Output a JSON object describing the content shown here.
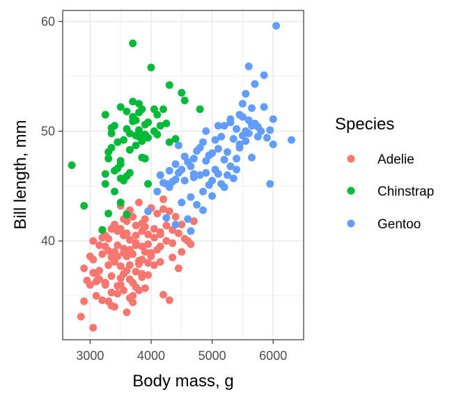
{
  "chart_data": {
    "type": "scatter",
    "xlabel": "Body mass, g",
    "ylabel": "Bill length, mm",
    "xlim": [
      2550,
      6500
    ],
    "ylim": [
      31,
      61
    ],
    "x_ticks": [
      3000,
      4000,
      5000,
      6000
    ],
    "y_ticks": [
      40,
      50,
      60
    ],
    "x_tick_labels": [
      "3000",
      "4000",
      "5000",
      "6000"
    ],
    "y_tick_labels": [
      "40",
      "50",
      "60"
    ],
    "grid": true,
    "legend": {
      "title": "Species",
      "placement": "right"
    },
    "series": [
      {
        "name": "Adelie",
        "color": "#F8766D",
        "points": [
          [
            3050,
            32.1
          ],
          [
            2850,
            33.1
          ],
          [
            2900,
            34.5
          ],
          [
            3200,
            34.6
          ],
          [
            3350,
            34.1
          ],
          [
            3400,
            34.0
          ],
          [
            4300,
            34.6
          ],
          [
            3600,
            33.5
          ],
          [
            3450,
            35.2
          ],
          [
            3100,
            35.0
          ],
          [
            3700,
            35.0
          ],
          [
            3800,
            35.5
          ],
          [
            4200,
            35.1
          ],
          [
            2950,
            36.4
          ],
          [
            3000,
            36.0
          ],
          [
            3150,
            36.5
          ],
          [
            3250,
            36.2
          ],
          [
            3350,
            36.8
          ],
          [
            3500,
            36.0
          ],
          [
            3550,
            37.0
          ],
          [
            3650,
            36.5
          ],
          [
            3750,
            37.2
          ],
          [
            3850,
            36.7
          ],
          [
            3300,
            37.8
          ],
          [
            3400,
            38.1
          ],
          [
            3500,
            37.7
          ],
          [
            3600,
            38.6
          ],
          [
            3700,
            38.8
          ],
          [
            3800,
            38.2
          ],
          [
            3900,
            39.0
          ],
          [
            4000,
            38.9
          ],
          [
            4100,
            39.2
          ],
          [
            2900,
            37.5
          ],
          [
            3050,
            38.3
          ],
          [
            3100,
            37.0
          ],
          [
            3200,
            38.8
          ],
          [
            3250,
            39.5
          ],
          [
            3300,
            40.2
          ],
          [
            3450,
            39.6
          ],
          [
            3550,
            40.5
          ],
          [
            3650,
            40.1
          ],
          [
            3750,
            39.8
          ],
          [
            3850,
            40.9
          ],
          [
            3950,
            40.6
          ],
          [
            4050,
            41.1
          ],
          [
            4150,
            40.8
          ],
          [
            4250,
            41.4
          ],
          [
            4350,
            41.0
          ],
          [
            4450,
            40.7
          ],
          [
            3200,
            41.0
          ],
          [
            3400,
            41.5
          ],
          [
            3500,
            41.1
          ],
          [
            3600,
            41.8
          ],
          [
            3700,
            42.2
          ],
          [
            3900,
            42.0
          ],
          [
            4100,
            42.5
          ],
          [
            4200,
            42.9
          ],
          [
            4300,
            42.7
          ],
          [
            4400,
            42.2
          ],
          [
            4500,
            41.5
          ],
          [
            3500,
            43.2
          ],
          [
            3600,
            42.5
          ],
          [
            3800,
            43.5
          ],
          [
            4000,
            43.0
          ],
          [
            4200,
            43.8
          ],
          [
            4700,
            41.8
          ],
          [
            4600,
            40.0
          ],
          [
            4500,
            39.0
          ],
          [
            4350,
            38.5
          ],
          [
            4250,
            40.0
          ],
          [
            4150,
            39.5
          ],
          [
            3950,
            38.0
          ],
          [
            3850,
            37.0
          ],
          [
            3750,
            35.8
          ],
          [
            3650,
            34.8
          ],
          [
            3550,
            35.5
          ],
          [
            3450,
            35.9
          ],
          [
            3350,
            35.3
          ],
          [
            3250,
            36.0
          ],
          [
            3150,
            37.3
          ],
          [
            3050,
            37.1
          ],
          [
            3350,
            38.5
          ],
          [
            3450,
            38.6
          ],
          [
            3550,
            38.9
          ],
          [
            3650,
            39.2
          ],
          [
            3750,
            39.6
          ],
          [
            3850,
            39.5
          ],
          [
            3950,
            39.7
          ],
          [
            4050,
            40.3
          ],
          [
            4150,
            40.6
          ],
          [
            3250,
            40.5
          ],
          [
            3450,
            41.1
          ],
          [
            3550,
            42.0
          ],
          [
            3650,
            42.8
          ],
          [
            3750,
            41.4
          ],
          [
            3850,
            41.6
          ],
          [
            4450,
            37.5
          ],
          [
            4050,
            37.8
          ],
          [
            3600,
            37.3
          ],
          [
            3400,
            39.0
          ],
          [
            3200,
            40.3
          ],
          [
            3000,
            38.6
          ],
          [
            3100,
            36.3
          ],
          [
            3300,
            34.5
          ],
          [
            3700,
            34.4
          ],
          [
            3900,
            35.7
          ],
          [
            3750,
            40.5
          ],
          [
            3450,
            40.9
          ],
          [
            3350,
            41.1
          ],
          [
            3550,
            39.3
          ],
          [
            3650,
            37.8
          ],
          [
            3850,
            38.3
          ],
          [
            3950,
            36.9
          ],
          [
            4150,
            38.1
          ],
          [
            4350,
            39.8
          ],
          [
            4550,
            40.2
          ],
          [
            4650,
            39.7
          ],
          [
            3900,
            41.3
          ],
          [
            3600,
            40.7
          ],
          [
            3300,
            39.1
          ],
          [
            3150,
            39.6
          ],
          [
            3050,
            40.0
          ],
          [
            3500,
            36.6
          ],
          [
            3700,
            36.2
          ],
          [
            3800,
            37.9
          ],
          [
            4000,
            38.6
          ]
        ]
      },
      {
        "name": "Chinstrap",
        "color": "#00BA38",
        "points": [
          [
            2700,
            46.9
          ],
          [
            2900,
            43.2
          ],
          [
            3200,
            41.0
          ],
          [
            3250,
            46.1
          ],
          [
            3250,
            45.2
          ],
          [
            3300,
            47.5
          ],
          [
            3300,
            48.1
          ],
          [
            3350,
            48.5
          ],
          [
            3350,
            50.3
          ],
          [
            3400,
            50.5
          ],
          [
            3400,
            46.4
          ],
          [
            3450,
            46.6
          ],
          [
            3450,
            49.0
          ],
          [
            3500,
            45.7
          ],
          [
            3500,
            47.0
          ],
          [
            3550,
            45.5
          ],
          [
            3550,
            49.2
          ],
          [
            3600,
            45.9
          ],
          [
            3600,
            50.2
          ],
          [
            3650,
            46.2
          ],
          [
            3650,
            49.8
          ],
          [
            3700,
            50.9
          ],
          [
            3700,
            51.3
          ],
          [
            3700,
            58.0
          ],
          [
            3750,
            49.6
          ],
          [
            3750,
            51.0
          ],
          [
            3800,
            49.5
          ],
          [
            3800,
            50.1
          ],
          [
            3800,
            51.7
          ],
          [
            3850,
            52.0
          ],
          [
            3850,
            47.6
          ],
          [
            3900,
            47.5
          ],
          [
            3900,
            49.7
          ],
          [
            3950,
            50.8
          ],
          [
            3950,
            45.2
          ],
          [
            4000,
            55.8
          ],
          [
            4050,
            52.0
          ],
          [
            4050,
            50.0
          ],
          [
            4100,
            51.5
          ],
          [
            4150,
            50.5
          ],
          [
            4200,
            52.0
          ],
          [
            4150,
            46.0
          ],
          [
            4300,
            54.2
          ],
          [
            4300,
            49.0
          ],
          [
            4400,
            49.3
          ],
          [
            4500,
            53.5
          ],
          [
            4550,
            52.8
          ],
          [
            4800,
            52.0
          ],
          [
            3250,
            51.5
          ],
          [
            3350,
            49.8
          ],
          [
            3500,
            52.2
          ],
          [
            3600,
            51.8
          ],
          [
            3700,
            52.7
          ],
          [
            3800,
            52.5
          ],
          [
            3300,
            42.5
          ],
          [
            3500,
            43.5
          ],
          [
            3600,
            42.4
          ],
          [
            3400,
            44.5
          ],
          [
            3500,
            47.3
          ],
          [
            3650,
            48.3
          ],
          [
            3750,
            48.7
          ],
          [
            3850,
            49.1
          ],
          [
            3900,
            50.6
          ],
          [
            3950,
            49.4
          ],
          [
            4100,
            49.7
          ],
          [
            4250,
            50.7
          ]
        ]
      },
      {
        "name": "Gentoo",
        "color": "#619CFF",
        "points": [
          [
            3950,
            42.7
          ],
          [
            4100,
            44.5
          ],
          [
            4150,
            46.0
          ],
          [
            4200,
            45.3
          ],
          [
            4250,
            45.2
          ],
          [
            4300,
            44.9
          ],
          [
            4300,
            46.4
          ],
          [
            4350,
            45.4
          ],
          [
            4400,
            45.6
          ],
          [
            4400,
            47.0
          ],
          [
            4450,
            46.2
          ],
          [
            4450,
            48.7
          ],
          [
            4500,
            46.5
          ],
          [
            4550,
            45.5
          ],
          [
            4600,
            47.2
          ],
          [
            4650,
            44.0
          ],
          [
            4650,
            46.8
          ],
          [
            4700,
            47.5
          ],
          [
            4700,
            45.8
          ],
          [
            4750,
            48.2
          ],
          [
            4800,
            46.0
          ],
          [
            4800,
            48.5
          ],
          [
            4850,
            44.5
          ],
          [
            4850,
            49.0
          ],
          [
            4900,
            46.2
          ],
          [
            4900,
            50.0
          ],
          [
            4950,
            47.8
          ],
          [
            5000,
            45.5
          ],
          [
            5000,
            48.0
          ],
          [
            5050,
            46.5
          ],
          [
            5050,
            49.2
          ],
          [
            5100,
            48.4
          ],
          [
            5150,
            45.2
          ],
          [
            5150,
            49.5
          ],
          [
            5200,
            47.4
          ],
          [
            5200,
            50.5
          ],
          [
            5250,
            48.1
          ],
          [
            5300,
            46.8
          ],
          [
            5300,
            50.8
          ],
          [
            5350,
            49.3
          ],
          [
            5400,
            47.5
          ],
          [
            5400,
            50.2
          ],
          [
            5450,
            48.5
          ],
          [
            5450,
            51.5
          ],
          [
            5500,
            49.6
          ],
          [
            5500,
            52.5
          ],
          [
            5550,
            50.0
          ],
          [
            5550,
            53.4
          ],
          [
            5600,
            49.8
          ],
          [
            5600,
            51.0
          ],
          [
            5650,
            50.5
          ],
          [
            5700,
            50.7
          ],
          [
            5700,
            54.3
          ],
          [
            5750,
            49.5
          ],
          [
            5800,
            50.0
          ],
          [
            5850,
            55.1
          ],
          [
            5900,
            49.4
          ],
          [
            6000,
            51.1
          ],
          [
            6000,
            48.8
          ],
          [
            6050,
            59.6
          ],
          [
            6300,
            49.2
          ],
          [
            5600,
            55.9
          ],
          [
            5950,
            45.2
          ],
          [
            4600,
            42.0
          ],
          [
            4400,
            41.5
          ],
          [
            4750,
            43.3
          ],
          [
            4250,
            42.1
          ],
          [
            4500,
            43.5
          ],
          [
            4650,
            40.9
          ],
          [
            5000,
            44.1
          ],
          [
            4900,
            47.3
          ],
          [
            5100,
            46.1
          ],
          [
            5250,
            46.0
          ],
          [
            5350,
            45.7
          ],
          [
            5450,
            48.8
          ],
          [
            5550,
            49.1
          ],
          [
            5650,
            52.1
          ],
          [
            5750,
            50.4
          ],
          [
            5850,
            52.2
          ],
          [
            5950,
            50.1
          ],
          [
            4550,
            47.7
          ],
          [
            4700,
            46.1
          ],
          [
            4950,
            45.1
          ],
          [
            5100,
            50.5
          ],
          [
            5300,
            51.1
          ],
          [
            5500,
            51.3
          ],
          [
            5200,
            44.9
          ],
          [
            4850,
            42.8
          ],
          [
            5400,
            46.5
          ],
          [
            5650,
            47.6
          ]
        ]
      }
    ]
  }
}
